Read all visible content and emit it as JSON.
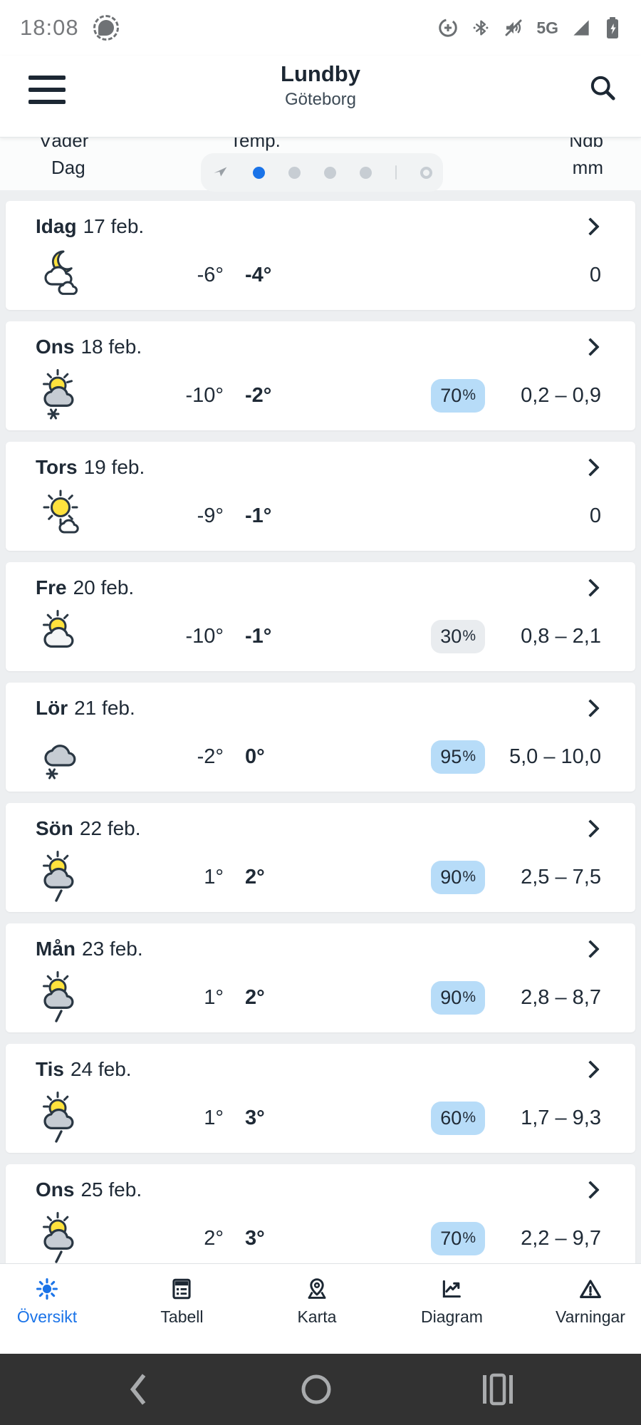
{
  "status_bar": {
    "time": "18:08",
    "network": "5G",
    "icons": [
      "signal-app",
      "data-saver",
      "bluetooth",
      "volume-off",
      "signal-strength",
      "battery-charging"
    ]
  },
  "header": {
    "title": "Lundby",
    "subtitle": "Göteborg"
  },
  "table_header": {
    "weather": "Väder",
    "weather_sub": "Dag",
    "temp": "Temp.",
    "precip": "Ndb",
    "precip_unit": "mm"
  },
  "pager": {
    "dot_count": 4,
    "active_index": 0,
    "has_cursor_icon": true,
    "has_overview_ring": true
  },
  "days": [
    {
      "day": "Idag",
      "date": "17 feb.",
      "condition": "partly-cloudy-night",
      "temp_low": "-6°",
      "temp_high": "-4°",
      "precip_probability": "",
      "badge_style": "",
      "precip_amount": "0"
    },
    {
      "day": "Ons",
      "date": "18 feb.",
      "condition": "snow-showers",
      "temp_low": "-10°",
      "temp_high": "-2°",
      "precip_probability": "70%",
      "badge_style": "blue",
      "precip_amount": "0,2 – 0,9"
    },
    {
      "day": "Tors",
      "date": "19 feb.",
      "condition": "mostly-sunny",
      "temp_low": "-9°",
      "temp_high": "-1°",
      "precip_probability": "",
      "badge_style": "",
      "precip_amount": "0"
    },
    {
      "day": "Fre",
      "date": "20 feb.",
      "condition": "partly-cloudy",
      "temp_low": "-10°",
      "temp_high": "-1°",
      "precip_probability": "30%",
      "badge_style": "gray",
      "precip_amount": "0,8 – 2,1"
    },
    {
      "day": "Lör",
      "date": "21 feb.",
      "condition": "snow",
      "temp_low": "-2°",
      "temp_high": "0°",
      "precip_probability": "95%",
      "badge_style": "blue",
      "precip_amount": "5,0 – 10,0"
    },
    {
      "day": "Sön",
      "date": "22 feb.",
      "condition": "rain-showers",
      "temp_low": "1°",
      "temp_high": "2°",
      "precip_probability": "90%",
      "badge_style": "blue",
      "precip_amount": "2,5 – 7,5"
    },
    {
      "day": "Mån",
      "date": "23 feb.",
      "condition": "rain-showers",
      "temp_low": "1°",
      "temp_high": "2°",
      "precip_probability": "90%",
      "badge_style": "blue",
      "precip_amount": "2,8 – 8,7"
    },
    {
      "day": "Tis",
      "date": "24 feb.",
      "condition": "rain-showers",
      "temp_low": "1°",
      "temp_high": "3°",
      "precip_probability": "60%",
      "badge_style": "blue",
      "precip_amount": "1,7 – 9,3"
    },
    {
      "day": "Ons",
      "date": "25 feb.",
      "condition": "rain-showers",
      "temp_low": "2°",
      "temp_high": "3°",
      "precip_probability": "70%",
      "badge_style": "blue",
      "precip_amount": "2,2 – 9,7"
    }
  ],
  "tab_bar": [
    {
      "label": "Översikt",
      "icon": "sun",
      "active": true
    },
    {
      "label": "Tabell",
      "icon": "table",
      "active": false
    },
    {
      "label": "Karta",
      "icon": "map-pin",
      "active": false
    },
    {
      "label": "Diagram",
      "icon": "line-chart",
      "active": false
    },
    {
      "label": "Varningar",
      "icon": "warning-triangle",
      "active": false
    }
  ],
  "android_nav": [
    "back",
    "home",
    "recents"
  ],
  "colors": {
    "accent_blue": "#1a73e8",
    "badge_blue": "#b7dcf8",
    "badge_gray": "#e9ecef",
    "text_dark": "#1f2a36",
    "status_gray": "#6b6f72",
    "android_bar": "#323232",
    "sun_yellow": "#ffe23d",
    "cloud_gray": "#c6ccd3"
  }
}
